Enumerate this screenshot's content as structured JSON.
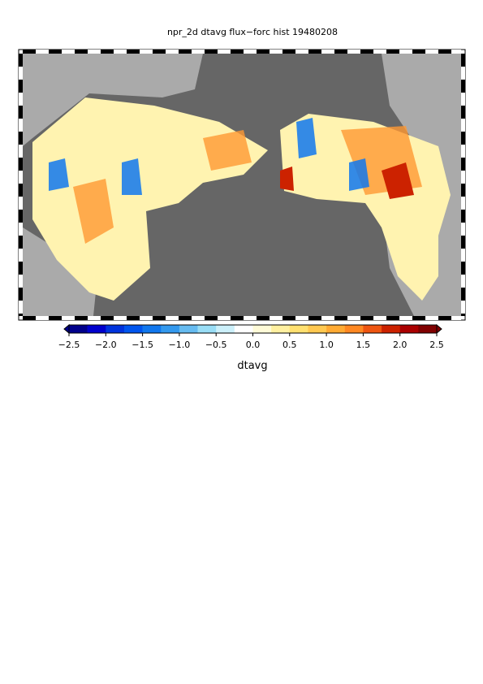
{
  "title": "npr_2d dtavg flux−forc hist 19480208",
  "colorbar": {
    "label": "dtavg",
    "lim": [
      -2.5,
      2.5
    ],
    "ticks": [
      {
        "value": -2.5,
        "label": "−2.5"
      },
      {
        "value": -2.0,
        "label": "−2.0"
      },
      {
        "value": -1.5,
        "label": "−1.5"
      },
      {
        "value": -1.0,
        "label": "−1.0"
      },
      {
        "value": -0.5,
        "label": "−0.5"
      },
      {
        "value": 0,
        "label": "0.0"
      },
      0.5,
      {
        "value": 1,
        "label": "1.0"
      },
      1.5,
      {
        "value": 2,
        "label": "2.0"
      },
      2.5
    ],
    "colors": [
      "#00008b",
      "#0000cd",
      "#0033dd",
      "#0055ee",
      "#1177ee",
      "#3399ee",
      "#66bbf0",
      "#99ddf5",
      "#ccf0fa",
      "#ffffff",
      "#fffbd8",
      "#fff0a0",
      "#ffe070",
      "#ffc850",
      "#ffaa33",
      "#ff8822",
      "#ee5511",
      "#cc2200",
      "#aa0000",
      "#800000"
    ]
  }
}
